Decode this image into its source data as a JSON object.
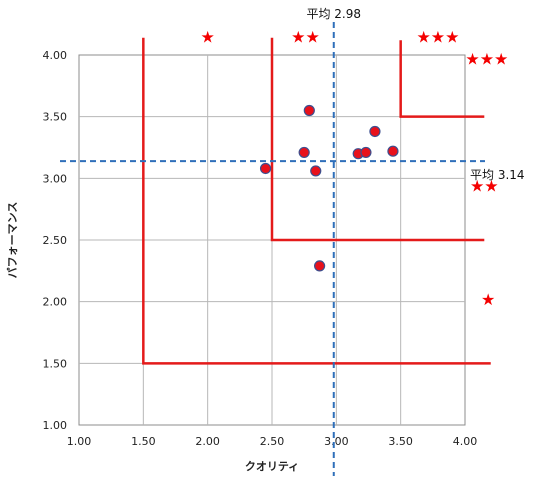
{
  "chart_data": {
    "type": "scatter",
    "xlabel": "クオリティ",
    "ylabel": "パフォーマンス",
    "xlim": [
      1.0,
      4.0
    ],
    "ylim": [
      1.0,
      4.0
    ],
    "x_ticks": [
      "1.00",
      "1.50",
      "2.00",
      "2.50",
      "3.00",
      "3.50",
      "4.00"
    ],
    "y_ticks": [
      "1.00",
      "1.50",
      "2.00",
      "2.50",
      "3.00",
      "3.50",
      "4.00"
    ],
    "grid": true,
    "points": [
      {
        "x": 2.45,
        "y": 3.08
      },
      {
        "x": 2.75,
        "y": 3.21
      },
      {
        "x": 2.79,
        "y": 3.55
      },
      {
        "x": 2.84,
        "y": 3.06
      },
      {
        "x": 2.87,
        "y": 2.29
      },
      {
        "x": 3.17,
        "y": 3.2
      },
      {
        "x": 3.23,
        "y": 3.21
      },
      {
        "x": 3.3,
        "y": 3.38
      },
      {
        "x": 3.44,
        "y": 3.22
      }
    ],
    "averages": {
      "x": {
        "value": 2.98,
        "label": "平均 2.98"
      },
      "y": {
        "value": 3.14,
        "label": "平均 3.14"
      }
    },
    "zones": [
      {
        "x0": 1.5,
        "y0": 1.5,
        "x1": 4.2,
        "y1": 4.14,
        "stars": "★"
      },
      {
        "x0": 2.5,
        "y0": 2.5,
        "x1": 4.15,
        "y1": 4.14,
        "stars": "★★"
      },
      {
        "x0": 3.5,
        "y0": 3.5,
        "x1": 4.15,
        "y1": 4.12,
        "stars": "★★★"
      }
    ],
    "star_labels": [
      {
        "text": "★",
        "x": 2.0,
        "y": 4.15
      },
      {
        "text": "★★",
        "x": 2.76,
        "y": 4.15
      },
      {
        "text": "★★★",
        "x": 3.79,
        "y": 4.15
      },
      {
        "text": "★★★",
        "x": 4.17,
        "y": 3.97
      },
      {
        "text": "★★",
        "x": 4.15,
        "y": 2.94
      },
      {
        "text": "★",
        "x": 4.18,
        "y": 2.02
      }
    ],
    "colors": {
      "point_fill": "#e8111b",
      "point_stroke": "#3d4f8f",
      "zone_line": "#e41a1a",
      "average_line": "#2f6fba",
      "grid": "#b7b7b7",
      "star": "#f40000"
    }
  }
}
